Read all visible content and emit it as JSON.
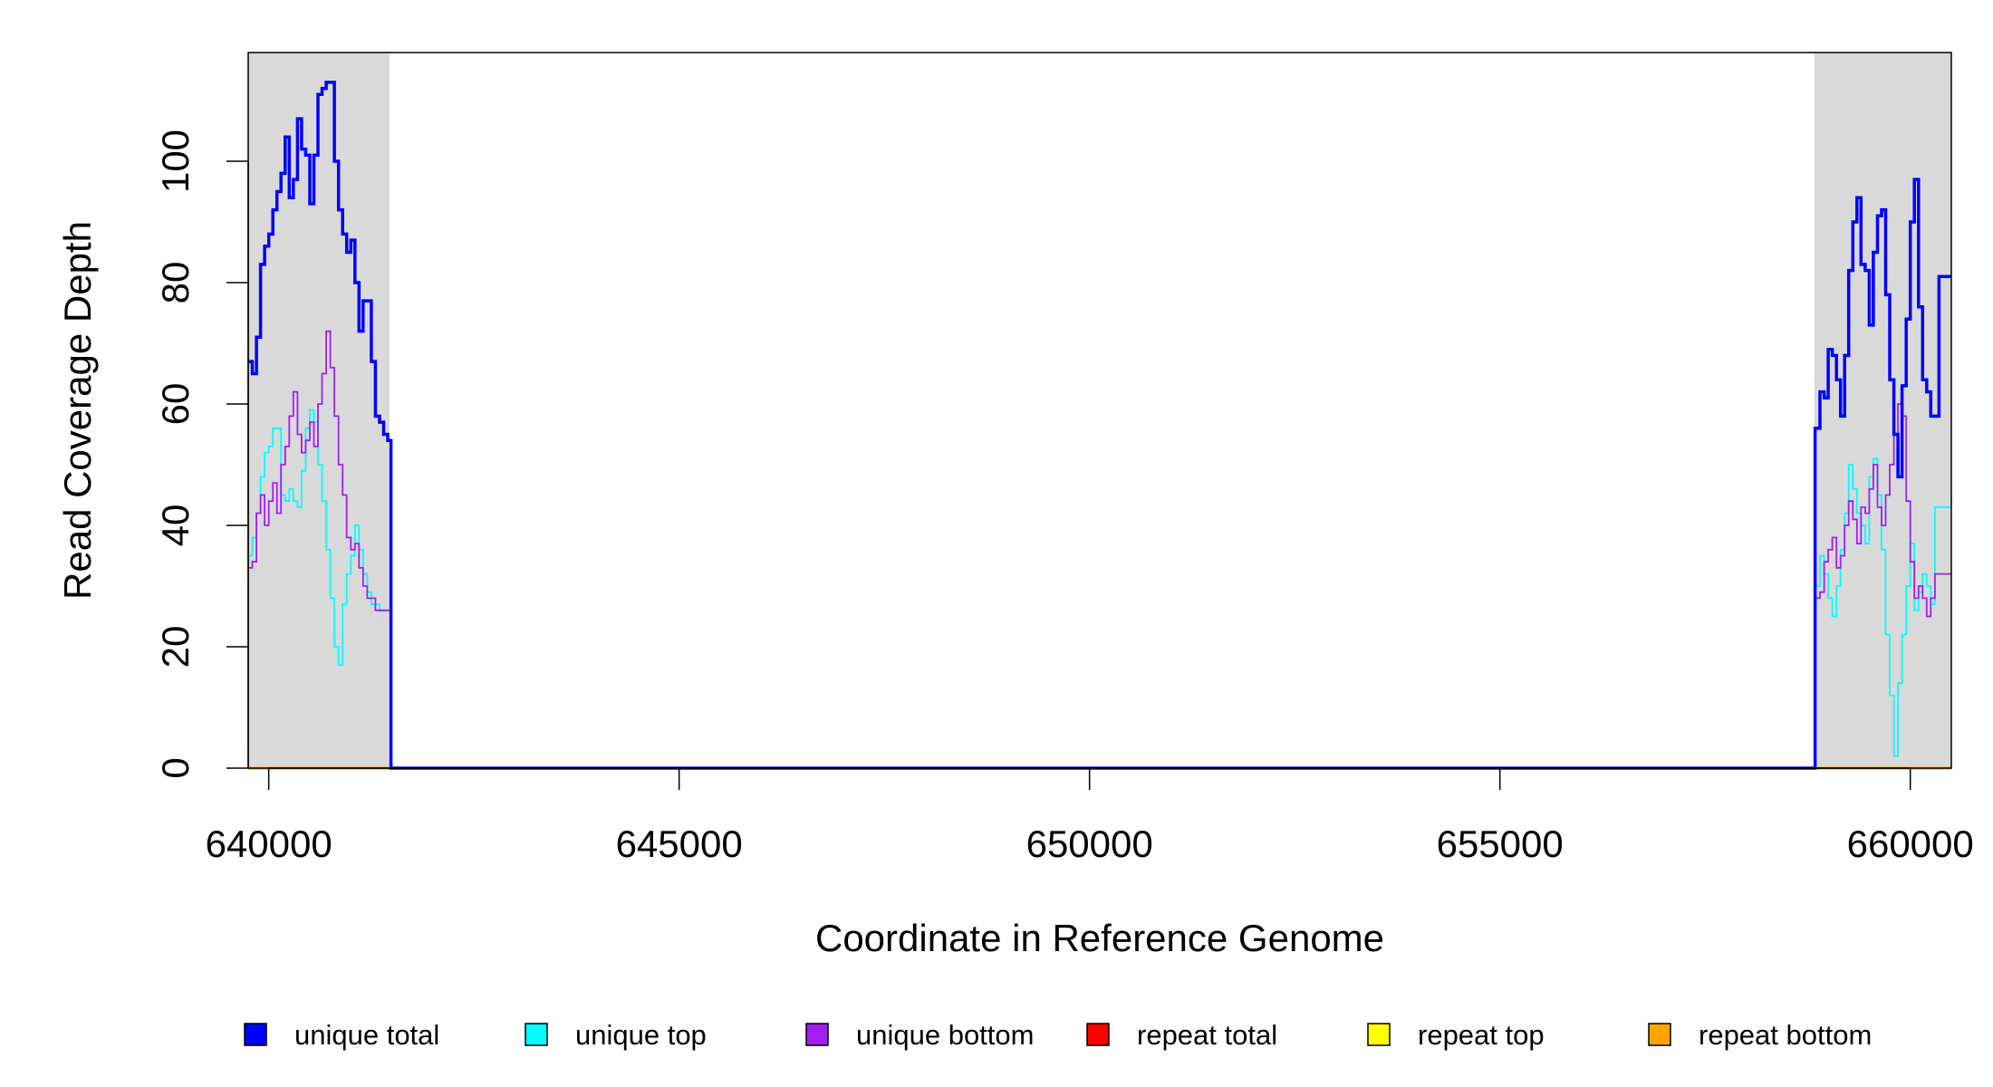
{
  "chart_data": {
    "type": "line",
    "xlabel": "Coordinate in Reference Genome",
    "ylabel": "Read Coverage Depth",
    "xlim": [
      639750,
      660500
    ],
    "ylim": [
      0,
      118
    ],
    "x_ticks": [
      640000,
      645000,
      650000,
      655000,
      660000
    ],
    "x_tick_labels": [
      "640000",
      "645000",
      "650000",
      "655000",
      "660000"
    ],
    "y_ticks": [
      0,
      20,
      40,
      60,
      80,
      100
    ],
    "y_tick_labels": [
      "0",
      "20",
      "40",
      "60",
      "80",
      "100"
    ],
    "grid": false,
    "shaded_regions": [
      {
        "x0": 639750,
        "x1": 641470,
        "color": "#d9d9d9"
      },
      {
        "x0": 658830,
        "x1": 660500,
        "color": "#d9d9d9"
      }
    ],
    "legend": {
      "placement": "bottom",
      "entries": [
        {
          "label": "unique total",
          "color": "#0000ff"
        },
        {
          "label": "unique top",
          "color": "#00ffff"
        },
        {
          "label": "unique bottom",
          "color": "#a020f0"
        },
        {
          "label": "repeat total",
          "color": "#ff0000"
        },
        {
          "label": "repeat top",
          "color": "#ffff00"
        },
        {
          "label": "repeat bottom",
          "color": "#ffa500"
        }
      ]
    },
    "series": [
      {
        "name": "unique total",
        "color": "#0000ff",
        "points": [
          [
            639750,
            67
          ],
          [
            639800,
            65
          ],
          [
            639850,
            71
          ],
          [
            639900,
            83
          ],
          [
            639950,
            86
          ],
          [
            640000,
            88
          ],
          [
            640050,
            92
          ],
          [
            640100,
            95
          ],
          [
            640150,
            98
          ],
          [
            640200,
            104
          ],
          [
            640250,
            94
          ],
          [
            640300,
            97
          ],
          [
            640350,
            107
          ],
          [
            640400,
            102
          ],
          [
            640450,
            101
          ],
          [
            640500,
            93
          ],
          [
            640550,
            101
          ],
          [
            640600,
            111
          ],
          [
            640650,
            112
          ],
          [
            640700,
            113
          ],
          [
            640750,
            113
          ],
          [
            640800,
            100
          ],
          [
            640850,
            92
          ],
          [
            640900,
            88
          ],
          [
            640950,
            85
          ],
          [
            641000,
            87
          ],
          [
            641050,
            80
          ],
          [
            641100,
            72
          ],
          [
            641150,
            77
          ],
          [
            641200,
            77
          ],
          [
            641250,
            67
          ],
          [
            641300,
            58
          ],
          [
            641350,
            57
          ],
          [
            641400,
            55
          ],
          [
            641450,
            54
          ],
          [
            641490,
            0
          ],
          [
            658830,
            0
          ],
          [
            658840,
            56
          ],
          [
            658900,
            62
          ],
          [
            658950,
            61
          ],
          [
            659000,
            69
          ],
          [
            659050,
            68
          ],
          [
            659100,
            64
          ],
          [
            659150,
            58
          ],
          [
            659200,
            68
          ],
          [
            659250,
            82
          ],
          [
            659300,
            90
          ],
          [
            659350,
            94
          ],
          [
            659400,
            83
          ],
          [
            659450,
            82
          ],
          [
            659500,
            73
          ],
          [
            659550,
            85
          ],
          [
            659600,
            91
          ],
          [
            659650,
            92
          ],
          [
            659700,
            78
          ],
          [
            659750,
            64
          ],
          [
            659800,
            55
          ],
          [
            659850,
            48
          ],
          [
            659900,
            63
          ],
          [
            659950,
            74
          ],
          [
            660000,
            90
          ],
          [
            660050,
            97
          ],
          [
            660100,
            76
          ],
          [
            660150,
            64
          ],
          [
            660200,
            62
          ],
          [
            660250,
            58
          ],
          [
            660300,
            58
          ],
          [
            660350,
            81
          ],
          [
            660500,
            81
          ]
        ]
      },
      {
        "name": "unique top",
        "color": "#00ffff",
        "points": [
          [
            639750,
            35
          ],
          [
            639800,
            38
          ],
          [
            639850,
            42
          ],
          [
            639900,
            48
          ],
          [
            639950,
            52
          ],
          [
            640000,
            53
          ],
          [
            640050,
            56
          ],
          [
            640100,
            56
          ],
          [
            640150,
            45
          ],
          [
            640200,
            44
          ],
          [
            640250,
            46
          ],
          [
            640300,
            44
          ],
          [
            640350,
            43
          ],
          [
            640400,
            49
          ],
          [
            640450,
            56
          ],
          [
            640500,
            59
          ],
          [
            640550,
            57
          ],
          [
            640600,
            50
          ],
          [
            640650,
            44
          ],
          [
            640700,
            36
          ],
          [
            640750,
            28
          ],
          [
            640800,
            20
          ],
          [
            640850,
            17
          ],
          [
            640900,
            27
          ],
          [
            640950,
            32
          ],
          [
            641000,
            35
          ],
          [
            641050,
            40
          ],
          [
            641100,
            36
          ],
          [
            641150,
            32
          ],
          [
            641200,
            29
          ],
          [
            641250,
            27
          ],
          [
            641300,
            27
          ],
          [
            641350,
            26
          ],
          [
            641400,
            26
          ],
          [
            641490,
            0
          ],
          [
            658830,
            0
          ],
          [
            658840,
            30
          ],
          [
            658900,
            35
          ],
          [
            658950,
            32
          ],
          [
            659000,
            28
          ],
          [
            659050,
            25
          ],
          [
            659100,
            30
          ],
          [
            659150,
            36
          ],
          [
            659200,
            42
          ],
          [
            659250,
            50
          ],
          [
            659300,
            46
          ],
          [
            659350,
            42
          ],
          [
            659400,
            40
          ],
          [
            659450,
            37
          ],
          [
            659500,
            48
          ],
          [
            659550,
            51
          ],
          [
            659600,
            45
          ],
          [
            659650,
            36
          ],
          [
            659700,
            22
          ],
          [
            659750,
            12
          ],
          [
            659800,
            2
          ],
          [
            659850,
            14
          ],
          [
            659900,
            22
          ],
          [
            659950,
            30
          ],
          [
            660000,
            37
          ],
          [
            660050,
            26
          ],
          [
            660100,
            29
          ],
          [
            660150,
            32
          ],
          [
            660200,
            30
          ],
          [
            660250,
            27
          ],
          [
            660300,
            43
          ],
          [
            660500,
            45
          ]
        ]
      },
      {
        "name": "unique bottom",
        "color": "#a020f0",
        "points": [
          [
            639750,
            33
          ],
          [
            639800,
            34
          ],
          [
            639850,
            42
          ],
          [
            639900,
            45
          ],
          [
            639950,
            40
          ],
          [
            640000,
            44
          ],
          [
            640050,
            47
          ],
          [
            640100,
            42
          ],
          [
            640150,
            50
          ],
          [
            640200,
            53
          ],
          [
            640250,
            58
          ],
          [
            640300,
            62
          ],
          [
            640350,
            55
          ],
          [
            640400,
            52
          ],
          [
            640450,
            54
          ],
          [
            640500,
            57
          ],
          [
            640550,
            53
          ],
          [
            640600,
            60
          ],
          [
            640650,
            65
          ],
          [
            640700,
            72
          ],
          [
            640750,
            66
          ],
          [
            640800,
            58
          ],
          [
            640850,
            50
          ],
          [
            640900,
            45
          ],
          [
            640950,
            38
          ],
          [
            641000,
            36
          ],
          [
            641050,
            37
          ],
          [
            641100,
            33
          ],
          [
            641150,
            30
          ],
          [
            641200,
            28
          ],
          [
            641300,
            26
          ],
          [
            641400,
            26
          ],
          [
            641490,
            0
          ],
          [
            658830,
            0
          ],
          [
            658840,
            28
          ],
          [
            658900,
            29
          ],
          [
            658950,
            34
          ],
          [
            659000,
            36
          ],
          [
            659050,
            38
          ],
          [
            659100,
            33
          ],
          [
            659150,
            35
          ],
          [
            659200,
            40
          ],
          [
            659250,
            44
          ],
          [
            659300,
            41
          ],
          [
            659350,
            37
          ],
          [
            659400,
            43
          ],
          [
            659450,
            42
          ],
          [
            659500,
            46
          ],
          [
            659550,
            50
          ],
          [
            659600,
            43
          ],
          [
            659650,
            40
          ],
          [
            659700,
            45
          ],
          [
            659750,
            50
          ],
          [
            659800,
            55
          ],
          [
            659850,
            60
          ],
          [
            659900,
            58
          ],
          [
            659950,
            44
          ],
          [
            660000,
            34
          ],
          [
            660050,
            28
          ],
          [
            660100,
            30
          ],
          [
            660150,
            28
          ],
          [
            660200,
            25
          ],
          [
            660250,
            28
          ],
          [
            660300,
            32
          ],
          [
            660500,
            32
          ]
        ]
      },
      {
        "name": "repeat total",
        "color": "#ff0000",
        "points": [
          [
            639750,
            0
          ],
          [
            660500,
            0
          ]
        ]
      },
      {
        "name": "repeat top",
        "color": "#ffff00",
        "points": [
          [
            639750,
            0
          ],
          [
            660500,
            0
          ]
        ]
      },
      {
        "name": "repeat bottom",
        "color": "#ffa500",
        "points": [
          [
            639750,
            0
          ],
          [
            660500,
            0
          ]
        ]
      }
    ]
  }
}
